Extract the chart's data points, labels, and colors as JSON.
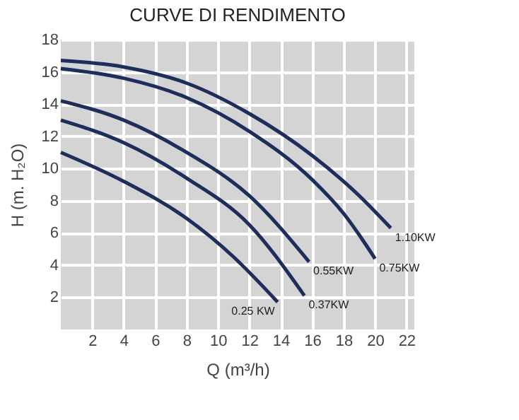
{
  "chart_data": {
    "type": "line",
    "title": "CURVE DI RENDIMENTO",
    "xlabel": "Q (m³/h)",
    "ylabel": "H (m. H₂O)",
    "xlim": [
      0,
      22.5
    ],
    "ylim": [
      0,
      18
    ],
    "xticks": [
      2,
      4,
      6,
      8,
      10,
      12,
      14,
      16,
      18,
      20,
      22
    ],
    "yticks": [
      2,
      4,
      6,
      8,
      10,
      12,
      14,
      16,
      18
    ],
    "grid": true,
    "legend": false,
    "marker": "none",
    "line_style": "solid",
    "series": [
      {
        "name": "1.10KW",
        "color": "#1f2d5a",
        "x": [
          0,
          4,
          8,
          12,
          16,
          19,
          21
        ],
        "values": [
          16.7,
          16.3,
          15.3,
          13.4,
          10.8,
          8.3,
          6.3
        ]
      },
      {
        "name": "0.75KW",
        "color": "#1f2d5a",
        "x": [
          0,
          4,
          8,
          12,
          16,
          18,
          20
        ],
        "values": [
          16.2,
          15.6,
          14.4,
          12.3,
          9.3,
          7.2,
          4.4
        ]
      },
      {
        "name": "0.55KW",
        "color": "#1f2d5a",
        "x": [
          0,
          4,
          8,
          12,
          15.8
        ],
        "values": [
          14.2,
          13.0,
          11.0,
          8.3,
          4.2
        ]
      },
      {
        "name": "0.37KW",
        "color": "#1f2d5a",
        "x": [
          0,
          4,
          8,
          12,
          15.5
        ],
        "values": [
          13.0,
          11.6,
          9.4,
          6.5,
          2.1
        ]
      },
      {
        "name": "0.25 KW",
        "color": "#1f2d5a",
        "x": [
          0,
          4,
          8,
          11,
          13.8
        ],
        "values": [
          11.0,
          9.2,
          6.9,
          4.5,
          1.7
        ]
      }
    ]
  }
}
